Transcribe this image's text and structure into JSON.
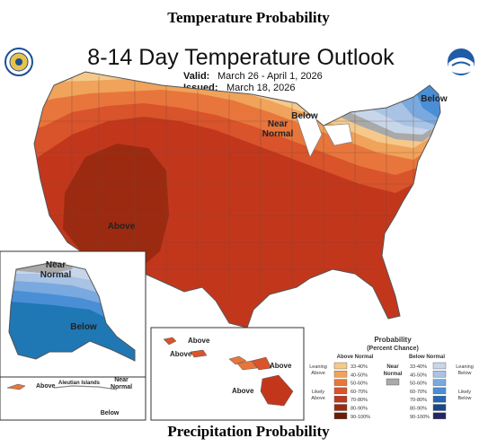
{
  "page": {
    "heading_top": "Temperature Probability",
    "heading_bottom": "Precipitation Probability"
  },
  "map": {
    "title": "8-14 Day Temperature Outlook",
    "valid_label": "Valid:",
    "valid_value": "March 26 - April 1, 2026",
    "issued_label": "Issued:",
    "issued_value": "March 18, 2026",
    "logo_left": "doc-seal-icon",
    "logo_right": "noaa-logo-icon",
    "region_labels": {
      "conus_above": "Above",
      "conus_near": "Near Normal",
      "conus_below_1": "Below",
      "conus_below_2": "Below",
      "alaska_near": "Near Normal",
      "alaska_below": "Below",
      "aleutian_islands": "Aleutian Islands",
      "aleutian_above": "Above",
      "aleutian_near": "Near Normal",
      "aleutian_below": "Below",
      "hawaii_above_1": "Above",
      "hawaii_above_2": "Above",
      "hawaii_above_3": "Above",
      "hawaii_above_4": "Above"
    }
  },
  "legend": {
    "title": "Probability",
    "subtitle": "(Percent Chance)",
    "above_header": "Above Normal",
    "below_header": "Below Normal",
    "near_header": "Near Normal",
    "leaning_above": "Leaning Above",
    "likely_above": "Likely Above",
    "leaning_below": "Leaning Below",
    "likely_below": "Likely Below",
    "ranges": [
      "33-40%",
      "40-50%",
      "50-60%",
      "60-70%",
      "70-80%",
      "80-90%",
      "90-100%"
    ],
    "above_colors": [
      "#f5c98c",
      "#f0a35a",
      "#e8763c",
      "#d9532b",
      "#c2371c",
      "#9c2a10",
      "#6b1d06"
    ],
    "below_colors": [
      "#c8d6ea",
      "#a9c3e5",
      "#7aa9df",
      "#4a8fd6",
      "#2367b8",
      "#17488e",
      "#23256b"
    ],
    "near_color": "#a9a9a9"
  }
}
